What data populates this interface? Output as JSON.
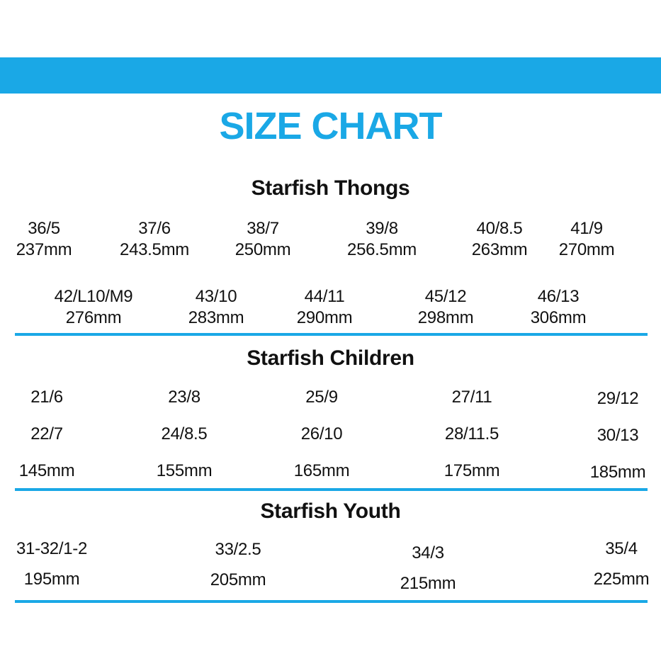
{
  "colors": {
    "accent": "#1aa8e6",
    "text": "#111111",
    "background": "#ffffff"
  },
  "title": "SIZE CHART",
  "thongs": {
    "title": "Starfish Thongs",
    "sizes": [
      {
        "size": "36/5",
        "length": "237mm"
      },
      {
        "size": "37/6",
        "length": "243.5mm"
      },
      {
        "size": "38/7",
        "length": "250mm"
      },
      {
        "size": "39/8",
        "length": "256.5mm"
      },
      {
        "size": "40/8.5",
        "length": "263mm"
      },
      {
        "size": "41/9",
        "length": "270mm"
      },
      {
        "size": "42/L10/M9",
        "length": "276mm"
      },
      {
        "size": "43/10",
        "length": "283mm"
      },
      {
        "size": "44/11",
        "length": "290mm"
      },
      {
        "size": "45/12",
        "length": "298mm"
      },
      {
        "size": "46/13",
        "length": "306mm"
      }
    ]
  },
  "children": {
    "title": "Starfish Children",
    "columns": [
      {
        "size_a": "21/6",
        "size_b": "22/7",
        "length": "145mm"
      },
      {
        "size_a": "23/8",
        "size_b": "24/8.5",
        "length": "155mm"
      },
      {
        "size_a": "25/9",
        "size_b": "26/10",
        "length": "165mm"
      },
      {
        "size_a": "27/11",
        "size_b": "28/11.5",
        "length": "175mm"
      },
      {
        "size_a": "29/12",
        "size_b": "30/13",
        "length": "185mm"
      }
    ]
  },
  "youth": {
    "title": "Starfish Youth",
    "columns": [
      {
        "size": "31-32/1-2",
        "length": "195mm"
      },
      {
        "size": "33/2.5",
        "length": "205mm"
      },
      {
        "size": "34/3",
        "length": "215mm"
      },
      {
        "size": "35/4",
        "length": "225mm"
      }
    ]
  }
}
